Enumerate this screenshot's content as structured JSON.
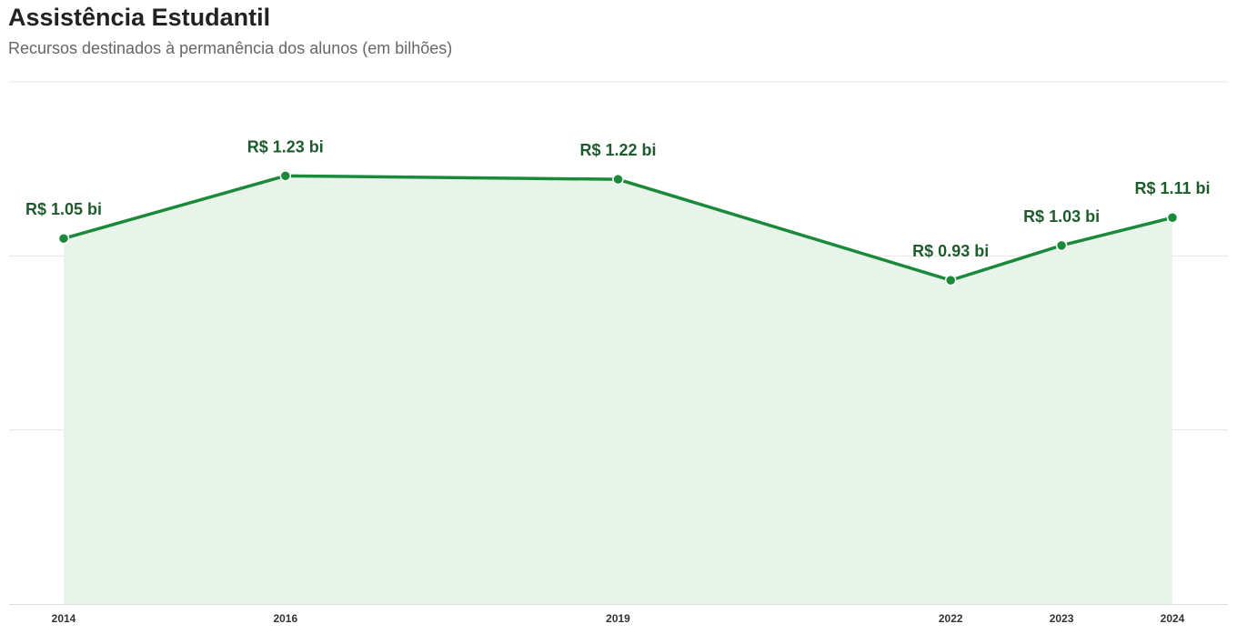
{
  "header": {
    "title": "Assistência Estudantil",
    "subtitle": "Recursos destinados à permanência dos alunos (em bilhões)"
  },
  "chart_data": {
    "type": "area",
    "title": "Assistência Estudantil",
    "subtitle": "Recursos destinados à permanência dos alunos (em bilhões)",
    "xlabel": "",
    "ylabel": "",
    "x": [
      2014,
      2016,
      2019,
      2022,
      2023,
      2024
    ],
    "tick_labels": [
      "2014",
      "2016",
      "2019",
      "2022",
      "2023",
      "2024"
    ],
    "series": [
      {
        "values": [
          1.05,
          1.23,
          1.22,
          0.93,
          1.03,
          1.11
        ],
        "data_labels": [
          "R$ 1.05 bi",
          "R$ 1.23 bi",
          "R$ 1.22 bi",
          "R$ 0.93 bi",
          "R$ 1.03 bi",
          "R$ 1.11 bi"
        ]
      }
    ],
    "ylim": [
      0,
      1.5
    ],
    "xlim": [
      2014,
      2024
    ],
    "grid": "horizontal",
    "legend": "none",
    "colors": {
      "line": "#1a8a3a",
      "area": "#e8f4ea",
      "label": "#1e5c2e",
      "grid": "#e6e6e6",
      "axis": "#dddddd"
    }
  }
}
